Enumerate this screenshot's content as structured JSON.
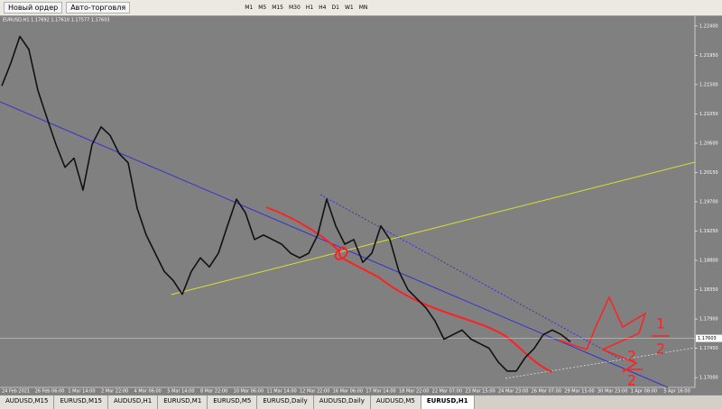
{
  "toolbar": {
    "new_order": "Новый ордер",
    "auto_trading": "Авто-торговля",
    "timeframes": [
      "M1",
      "M5",
      "M15",
      "M30",
      "H1",
      "H4",
      "D1",
      "W1",
      "MN"
    ]
  },
  "chart": {
    "header": "EURUSD,H1  1.17692 1.17610 1.17577 1.17603",
    "ylim": [
      1.1685,
      1.2255
    ],
    "price_ticks": [
      {
        "value": 1.224,
        "label": "1.22400"
      },
      {
        "value": 1.2195,
        "label": "1.21950"
      },
      {
        "value": 1.215,
        "label": "1.21500"
      },
      {
        "value": 1.2105,
        "label": "1.21050"
      },
      {
        "value": 1.206,
        "label": "1.20600"
      },
      {
        "value": 1.2015,
        "label": "1.20150"
      },
      {
        "value": 1.197,
        "label": "1.19700"
      },
      {
        "value": 1.1925,
        "label": "1.19250"
      },
      {
        "value": 1.188,
        "label": "1.18800"
      },
      {
        "value": 1.1835,
        "label": "1.18350"
      },
      {
        "value": 1.179,
        "label": "1.17900"
      },
      {
        "value": 1.1745,
        "label": "1.17450"
      },
      {
        "value": 1.17,
        "label": "1.17000"
      }
    ],
    "current_price": {
      "value": 1.17603,
      "label": "1.17603"
    },
    "time_labels": [
      "24 Feb 2021",
      "26 Feb 06:00",
      "1 Mar 14:00",
      "2 Mar 22:00",
      "4 Mar 06:00",
      "5 Mar 14:00",
      "8 Mar 22:00",
      "10 Mar 06:00",
      "11 Mar 14:00",
      "12 Mar 22:00",
      "16 Mar 06:00",
      "17 Mar 14:00",
      "18 Mar 22:00",
      "22 Mar 07:00",
      "23 Mar 15:00",
      "24 Mar 23:00",
      "26 Mar 07:00",
      "29 Mar 15:00",
      "30 Mar 23:00",
      "1 Apr 08:00",
      "5 Apr 16:00"
    ],
    "prices": [
      1.2148,
      1.2183,
      1.2224,
      1.2204,
      1.2141,
      1.2099,
      1.2058,
      1.2023,
      1.2037,
      1.1988,
      1.2058,
      1.2085,
      1.2072,
      1.2044,
      1.203,
      1.196,
      1.1919,
      1.1891,
      1.1863,
      1.1849,
      1.1828,
      1.1863,
      1.1884,
      1.187,
      1.1891,
      1.1933,
      1.1974,
      1.1953,
      1.1912,
      1.1919,
      1.1912,
      1.1905,
      1.1891,
      1.1884,
      1.1891,
      1.1919,
      1.1974,
      1.1933,
      1.1905,
      1.1912,
      1.1877,
      1.1891,
      1.1933,
      1.1912,
      1.1863,
      1.1835,
      1.1821,
      1.1807,
      1.1787,
      1.1759,
      1.1766,
      1.1773,
      1.1759,
      1.1752,
      1.1745,
      1.1724,
      1.171,
      1.171,
      1.1731,
      1.1745,
      1.1766,
      1.1773,
      1.1766,
      1.1755
    ],
    "annotations": [
      "1",
      "2"
    ]
  },
  "tabs": [
    "AUDUSD,M15",
    "EURUSD,M15",
    "AUDUSD,H1",
    "EURUSD,M1",
    "EURUSD,M5",
    "EURUSD,Daily",
    "AUDUSD,Daily",
    "AUDUSD,M5",
    "EURUSD,H1"
  ]
}
